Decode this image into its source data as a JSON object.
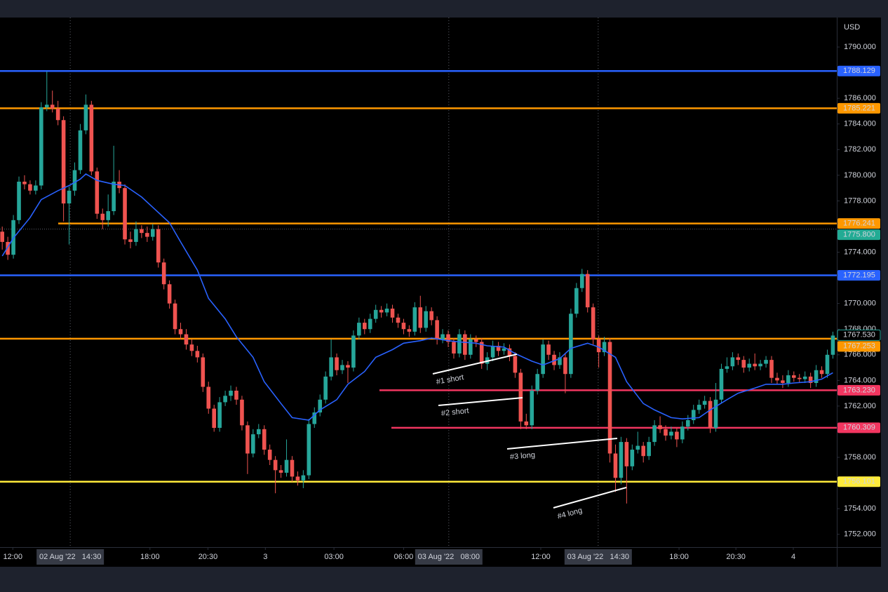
{
  "chart_data": {
    "type": "candlestick",
    "y_unit": "USD",
    "up_color": "#26a69a",
    "down_color": "#ef5350",
    "ylim": [
      1751.0,
      1792.3
    ],
    "yticks": [
      {
        "value": 1752,
        "label": "1752.000"
      },
      {
        "value": 1754,
        "label": "1754.000"
      },
      {
        "value": 1758,
        "label": "1758.000"
      },
      {
        "value": 1762,
        "label": "1762.000"
      },
      {
        "value": 1764,
        "label": "1764.000"
      },
      {
        "value": 1766,
        "label": "1766.000"
      },
      {
        "value": 1768,
        "label": "1768.000"
      },
      {
        "value": 1770,
        "label": "1770.000"
      },
      {
        "value": 1774,
        "label": "1774.000"
      },
      {
        "value": 1778,
        "label": "1778.000"
      },
      {
        "value": 1780,
        "label": "1780.000"
      },
      {
        "value": 1782,
        "label": "1782.000"
      },
      {
        "value": 1784,
        "label": "1784.000"
      },
      {
        "value": 1786,
        "label": "1786.000"
      },
      {
        "value": 1790,
        "label": "1790.000"
      }
    ],
    "xlim": [
      -0.4,
      149.7
    ],
    "xticks": [
      {
        "value": 1.9,
        "label": "12:00"
      },
      {
        "value": 26.5,
        "label": "18:00"
      },
      {
        "value": 36.9,
        "label": "20:30"
      },
      {
        "value": 47.2,
        "label": "3"
      },
      {
        "value": 59.5,
        "label": "03:00"
      },
      {
        "value": 72,
        "label": "06:00"
      },
      {
        "value": 96.6,
        "label": "12:00"
      },
      {
        "value": 121.4,
        "label": "18:00"
      },
      {
        "value": 131.6,
        "label": "20:30"
      },
      {
        "value": 141.9,
        "label": "4"
      }
    ],
    "crosshairs": [
      {
        "value": 12.2,
        "label": "02 Aug '22   14:30"
      },
      {
        "value": 80.1,
        "label": "03 Aug '22   08:00"
      },
      {
        "value": 106.9,
        "label": "03 Aug '22   14:30"
      }
    ],
    "open": [
      1775.6,
      1774.8,
      1773.8,
      1776.5,
      1779.5,
      1779.3,
      1778.8,
      1779.2,
      1785.3,
      1785.5,
      1785.2,
      1784.3,
      1777.8,
      1778.8,
      1780.4,
      1783.5,
      1785.5,
      1780.3,
      1777.0,
      1776.5,
      1777.2,
      1779.5,
      1779.0,
      1775.0,
      1774.8,
      1775.8,
      1775.5,
      1775.2,
      1775.8,
      1773.2,
      1771.5,
      1770.0,
      1768.0,
      1767.6,
      1766.8,
      1766.3,
      1765.8,
      1763.5,
      1761.8,
      1760.3,
      1762.3,
      1762.8,
      1763.2,
      1762.5,
      1760.5,
      1758.3,
      1759.8,
      1760.2,
      1758.6,
      1757.8,
      1757.0,
      1756.8,
      1757.8,
      1756.5,
      1756.2,
      1756.6,
      1760.6,
      1761.5,
      1762.5,
      1764.3,
      1765.8,
      1764.8,
      1765.2,
      1765.0,
      1767.5,
      1768.5,
      1768.0,
      1768.8,
      1769.5,
      1769.3,
      1769.6,
      1768.9,
      1768.5,
      1768.0,
      1767.8,
      1769.7,
      1768.1,
      1769.4,
      1768.7,
      1767.2,
      1767.6,
      1767.0,
      1766.1,
      1767.6,
      1766.0,
      1767.2,
      1767.0,
      1765.3,
      1765.8,
      1766.7,
      1766.3,
      1766.5,
      1765.9,
      1764.6,
      1760.8,
      1760.5,
      1763.2,
      1764.5,
      1766.8,
      1766.0,
      1765.2,
      1765.8,
      1764.5,
      1769.2,
      1771.2,
      1772.3,
      1769.7,
      1767.2,
      1766.2,
      1767.0,
      1758.3,
      1756.4,
      1759.2,
      1757.3,
      1758.6,
      1758.9,
      1758.1,
      1759.2,
      1760.5,
      1760.2,
      1759.7,
      1760.0,
      1759.4,
      1760.4,
      1760.9,
      1761.7,
      1762.1,
      1762.4,
      1760.3,
      1762.5,
      1764.9,
      1765.1,
      1765.8,
      1765.6,
      1765.0,
      1765.3,
      1765.1,
      1765.3,
      1765.6,
      1764.2,
      1764.0,
      1763.8,
      1764.4,
      1764.2,
      1764.1,
      1764.3,
      1763.8,
      1764.8,
      1764.5,
      1766.0
    ],
    "high": [
      1776.0,
      1775.2,
      1776.9,
      1779.9,
      1780.0,
      1779.6,
      1779.6,
      1785.7,
      1788.1,
      1786.6,
      1785.8,
      1784.6,
      1779.1,
      1781.0,
      1784.0,
      1786.3,
      1785.8,
      1780.6,
      1777.4,
      1778.5,
      1782.3,
      1780.4,
      1779.3,
      1775.6,
      1776.4,
      1776.1,
      1776.0,
      1776.2,
      1776.1,
      1773.5,
      1771.8,
      1770.3,
      1768.5,
      1768.0,
      1767.2,
      1766.7,
      1766.1,
      1763.9,
      1762.1,
      1762.7,
      1763.2,
      1763.6,
      1763.5,
      1762.8,
      1760.8,
      1760.2,
      1760.6,
      1760.5,
      1759.0,
      1758.1,
      1757.4,
      1759.4,
      1758.1,
      1756.9,
      1757.0,
      1761.0,
      1761.9,
      1762.9,
      1764.7,
      1767.2,
      1766.1,
      1765.6,
      1765.5,
      1767.9,
      1768.9,
      1768.8,
      1769.2,
      1769.9,
      1769.8,
      1770.0,
      1769.9,
      1769.2,
      1768.8,
      1768.3,
      1770.1,
      1770.6,
      1769.8,
      1769.7,
      1769.0,
      1768.0,
      1767.9,
      1767.3,
      1768.0,
      1767.9,
      1767.6,
      1767.5,
      1767.3,
      1766.2,
      1767.1,
      1767.0,
      1766.9,
      1766.8,
      1766.2,
      1764.9,
      1761.4,
      1763.6,
      1764.9,
      1767.2,
      1767.1,
      1766.3,
      1766.2,
      1766.1,
      1769.6,
      1771.6,
      1772.7,
      1772.6,
      1770.0,
      1767.5,
      1767.4,
      1767.3,
      1759.0,
      1759.6,
      1759.5,
      1759.0,
      1760.0,
      1759.2,
      1759.6,
      1760.9,
      1761.2,
      1760.5,
      1760.4,
      1760.3,
      1760.8,
      1761.3,
      1762.1,
      1762.5,
      1762.8,
      1762.7,
      1763.8,
      1765.3,
      1765.8,
      1766.2,
      1766.1,
      1765.9,
      1765.7,
      1766.1,
      1765.6,
      1765.9,
      1765.9,
      1764.6,
      1764.4,
      1764.8,
      1764.7,
      1764.5,
      1764.7,
      1764.6,
      1765.2,
      1765.1,
      1766.4,
      1767.8
    ],
    "low": [
      1774.2,
      1773.4,
      1773.5,
      1776.2,
      1778.9,
      1778.5,
      1778.5,
      1778.9,
      1785.0,
      1784.9,
      1783.9,
      1776.4,
      1774.6,
      1778.4,
      1780.1,
      1783.2,
      1780.0,
      1776.6,
      1775.8,
      1776.0,
      1776.9,
      1778.6,
      1774.6,
      1774.3,
      1774.5,
      1775.1,
      1774.8,
      1774.9,
      1772.8,
      1771.1,
      1769.6,
      1767.6,
      1767.2,
      1766.4,
      1765.9,
      1765.4,
      1763.1,
      1761.4,
      1760.0,
      1760.0,
      1762.0,
      1762.4,
      1762.1,
      1760.1,
      1756.7,
      1758.0,
      1759.5,
      1758.2,
      1757.4,
      1755.2,
      1756.4,
      1756.5,
      1756.1,
      1755.8,
      1755.6,
      1756.3,
      1760.3,
      1761.2,
      1762.2,
      1764.0,
      1764.4,
      1764.5,
      1763.8,
      1764.7,
      1767.2,
      1767.6,
      1767.7,
      1768.5,
      1768.9,
      1769.0,
      1768.5,
      1768.1,
      1767.6,
      1767.4,
      1767.5,
      1767.7,
      1767.8,
      1768.3,
      1766.8,
      1766.9,
      1766.6,
      1765.7,
      1765.8,
      1765.6,
      1765.7,
      1766.6,
      1764.9,
      1764.8,
      1765.5,
      1765.9,
      1766.0,
      1765.5,
      1764.2,
      1760.2,
      1760.2,
      1760.2,
      1762.9,
      1764.2,
      1765.6,
      1764.8,
      1764.9,
      1763.0,
      1764.2,
      1768.9,
      1770.9,
      1769.3,
      1766.8,
      1765.0,
      1765.9,
      1757.6,
      1755.3,
      1755.9,
      1754.4,
      1757.0,
      1758.3,
      1757.6,
      1757.8,
      1758.9,
      1759.9,
      1759.3,
      1759.4,
      1758.8,
      1759.1,
      1760.1,
      1760.6,
      1761.4,
      1761.8,
      1759.9,
      1760.0,
      1762.2,
      1764.6,
      1764.8,
      1765.2,
      1764.6,
      1764.7,
      1764.8,
      1764.8,
      1765.0,
      1763.8,
      1763.7,
      1763.4,
      1763.5,
      1763.9,
      1763.8,
      1763.8,
      1763.4,
      1763.5,
      1764.2,
      1764.2,
      1765.7
    ],
    "close": [
      1774.8,
      1773.8,
      1776.5,
      1779.5,
      1779.3,
      1778.8,
      1779.2,
      1785.3,
      1785.5,
      1785.2,
      1784.3,
      1777.8,
      1778.8,
      1780.4,
      1783.5,
      1785.5,
      1780.3,
      1777.0,
      1776.5,
      1777.2,
      1779.5,
      1779.0,
      1775.0,
      1774.8,
      1775.8,
      1775.5,
      1775.2,
      1775.8,
      1773.2,
      1771.5,
      1770.0,
      1768.0,
      1767.6,
      1766.8,
      1766.3,
      1765.8,
      1763.5,
      1761.8,
      1760.3,
      1762.3,
      1762.8,
      1763.2,
      1762.5,
      1760.5,
      1758.3,
      1759.8,
      1760.2,
      1758.6,
      1757.8,
      1757.0,
      1756.8,
      1757.8,
      1756.5,
      1756.2,
      1756.6,
      1760.6,
      1761.5,
      1762.5,
      1764.3,
      1765.8,
      1764.8,
      1765.2,
      1765.0,
      1767.5,
      1768.5,
      1768.0,
      1768.8,
      1769.5,
      1769.3,
      1769.6,
      1768.9,
      1768.5,
      1768.0,
      1767.8,
      1769.7,
      1768.1,
      1769.4,
      1768.7,
      1767.2,
      1767.6,
      1767.0,
      1766.1,
      1767.6,
      1766.0,
      1767.2,
      1767.0,
      1765.3,
      1765.8,
      1766.7,
      1766.3,
      1766.5,
      1765.9,
      1764.6,
      1760.8,
      1760.5,
      1763.2,
      1764.5,
      1766.8,
      1766.0,
      1765.2,
      1765.8,
      1764.5,
      1769.2,
      1771.2,
      1772.3,
      1769.7,
      1767.2,
      1766.2,
      1767.0,
      1758.3,
      1756.4,
      1759.2,
      1757.3,
      1758.6,
      1758.9,
      1758.1,
      1759.2,
      1760.5,
      1760.2,
      1759.7,
      1760.0,
      1759.4,
      1760.4,
      1760.9,
      1761.7,
      1762.1,
      1762.4,
      1760.3,
      1762.5,
      1764.9,
      1765.1,
      1765.8,
      1765.6,
      1765.0,
      1765.3,
      1765.1,
      1765.3,
      1765.6,
      1764.2,
      1764.0,
      1763.8,
      1764.4,
      1764.2,
      1764.1,
      1764.3,
      1763.8,
      1764.8,
      1764.5,
      1766.0,
      1767.5
    ],
    "ma": {
      "color": "#2962ff",
      "x": [
        0,
        2,
        5,
        7,
        10,
        12,
        14,
        15,
        17,
        20,
        22,
        25,
        27,
        30,
        32,
        35,
        37,
        40,
        42,
        45,
        47,
        50,
        52,
        55,
        57,
        60,
        62,
        65,
        67,
        70,
        72,
        75,
        77,
        80,
        82,
        85,
        87,
        90,
        92,
        95,
        97,
        100,
        102,
        105,
        107,
        110,
        112,
        115,
        117,
        120,
        122,
        125,
        127,
        130,
        132,
        135,
        137,
        140,
        142,
        145,
        147,
        149
      ],
      "values": [
        1773.7,
        1775.1,
        1776.7,
        1778.1,
        1778.8,
        1779.2,
        1779.7,
        1780.1,
        1779.6,
        1779.3,
        1779.2,
        1778.3,
        1777.5,
        1776.3,
        1774.8,
        1772.6,
        1770.4,
        1768.8,
        1767.4,
        1765.8,
        1763.9,
        1762.2,
        1761.1,
        1760.9,
        1761.7,
        1762.5,
        1763.7,
        1764.7,
        1765.8,
        1766.4,
        1766.9,
        1767.1,
        1767.3,
        1767.1,
        1767.0,
        1766.9,
        1766.7,
        1766.6,
        1766.1,
        1765.5,
        1765.2,
        1765.7,
        1766.5,
        1766.9,
        1766.6,
        1765.8,
        1763.9,
        1762.2,
        1761.7,
        1761.1,
        1761.0,
        1761.1,
        1761.7,
        1762.5,
        1763.0,
        1763.4,
        1763.7,
        1763.7,
        1763.8,
        1763.9,
        1764.1,
        1764.6
      ]
    },
    "levels": [
      {
        "value": 1788.129,
        "color": "#2962ff"
      },
      {
        "value": 1785.221,
        "color": "#ff9800"
      },
      {
        "value": 1776.241,
        "color": "#ff9800"
      },
      {
        "value": 1775.8,
        "label": "1775.800",
        "color": "#22ab94",
        "line": "dotted"
      },
      {
        "value": 1772.195,
        "color": "#2962ff"
      },
      {
        "value": 1767.53,
        "label": "1767.530",
        "color": "#26a69a",
        "line": "none",
        "badge": "outline"
      },
      {
        "value": 1767.253,
        "color": "#ff9800"
      },
      {
        "value": 1763.23,
        "label": "1763.230",
        "color": "#f23660"
      },
      {
        "value": 1760.309,
        "color": "#f23660"
      },
      {
        "value": 1756.101,
        "color": "#ffeb3b"
      }
    ],
    "annotations": [
      "#1 short",
      "#2 short",
      "#3 long",
      "#4 long"
    ]
  }
}
